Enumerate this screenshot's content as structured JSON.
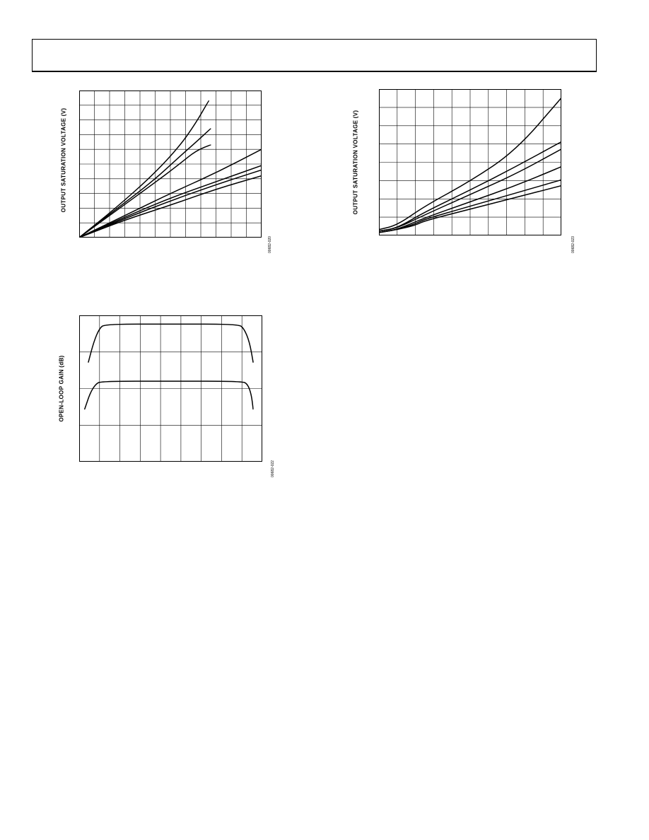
{
  "page": {
    "header": ""
  },
  "chart_data": [
    {
      "id": "chart1",
      "type": "line",
      "title": "",
      "xlabel": "",
      "ylabel": "OUTPUT SATURATION VOLTAGE (V)",
      "figure_id": "00682-020",
      "grid": true,
      "xlim": [
        0,
        1
      ],
      "ylim": [
        0,
        1
      ],
      "series": [
        {
          "values": [
            [
              0,
              0
            ],
            [
              0.2,
              0.2
            ],
            [
              0.4,
              0.42
            ],
            [
              0.55,
              0.62
            ],
            [
              0.64,
              0.78
            ],
            [
              0.71,
              0.93
            ]
          ]
        },
        {
          "values": [
            [
              0,
              0
            ],
            [
              0.2,
              0.19
            ],
            [
              0.4,
              0.38
            ],
            [
              0.55,
              0.55
            ],
            [
              0.65,
              0.66
            ],
            [
              0.72,
              0.74
            ]
          ]
        },
        {
          "values": [
            [
              0,
              0
            ],
            [
              0.2,
              0.18
            ],
            [
              0.4,
              0.36
            ],
            [
              0.55,
              0.5
            ],
            [
              0.64,
              0.59
            ],
            [
              0.72,
              0.63
            ]
          ]
        },
        {
          "values": [
            [
              0,
              0
            ],
            [
              0.25,
              0.15
            ],
            [
              0.5,
              0.3
            ],
            [
              0.75,
              0.44
            ],
            [
              1.0,
              0.6
            ]
          ]
        },
        {
          "values": [
            [
              0,
              0
            ],
            [
              0.25,
              0.14
            ],
            [
              0.5,
              0.27
            ],
            [
              0.75,
              0.38
            ],
            [
              1.0,
              0.49
            ]
          ]
        },
        {
          "values": [
            [
              0,
              0
            ],
            [
              0.25,
              0.13
            ],
            [
              0.5,
              0.25
            ],
            [
              0.75,
              0.36
            ],
            [
              1.0,
              0.46
            ]
          ]
        },
        {
          "values": [
            [
              0,
              0
            ],
            [
              0.25,
              0.12
            ],
            [
              0.5,
              0.22
            ],
            [
              0.75,
              0.33
            ],
            [
              1.0,
              0.42
            ]
          ]
        }
      ]
    },
    {
      "id": "chart2",
      "type": "line",
      "title": "",
      "xlabel": "",
      "ylabel": "OUTPUT SATURATION VOLTAGE (V)",
      "figure_id": "00682-023",
      "grid": true,
      "xlim": [
        0,
        1
      ],
      "ylim": [
        0,
        1
      ],
      "series": [
        {
          "values": [
            [
              0,
              0.04
            ],
            [
              0.1,
              0.07
            ],
            [
              0.25,
              0.2
            ],
            [
              0.5,
              0.37
            ],
            [
              0.75,
              0.58
            ],
            [
              1.0,
              0.94
            ]
          ]
        },
        {
          "values": [
            [
              0,
              0.03
            ],
            [
              0.1,
              0.05
            ],
            [
              0.25,
              0.16
            ],
            [
              0.5,
              0.31
            ],
            [
              0.75,
              0.47
            ],
            [
              1.0,
              0.64
            ]
          ]
        },
        {
          "values": [
            [
              0,
              0.03
            ],
            [
              0.1,
              0.05
            ],
            [
              0.25,
              0.14
            ],
            [
              0.5,
              0.28
            ],
            [
              0.75,
              0.42
            ],
            [
              1.0,
              0.59
            ]
          ]
        },
        {
          "values": [
            [
              0,
              0.02
            ],
            [
              0.1,
              0.04
            ],
            [
              0.25,
              0.12
            ],
            [
              0.5,
              0.23
            ],
            [
              0.75,
              0.34
            ],
            [
              1.0,
              0.47
            ]
          ]
        },
        {
          "values": [
            [
              0,
              0.02
            ],
            [
              0.1,
              0.04
            ],
            [
              0.2,
              0.08
            ],
            [
              0.25,
              0.11
            ],
            [
              0.5,
              0.2
            ],
            [
              0.75,
              0.29
            ],
            [
              1.0,
              0.38
            ]
          ]
        },
        {
          "values": [
            [
              0,
              0.02
            ],
            [
              0.1,
              0.04
            ],
            [
              0.2,
              0.07
            ],
            [
              0.25,
              0.1
            ],
            [
              0.5,
              0.18
            ],
            [
              0.75,
              0.26
            ],
            [
              1.0,
              0.34
            ]
          ]
        }
      ]
    },
    {
      "id": "chart3",
      "type": "line",
      "title": "",
      "xlabel": "",
      "ylabel": "OPEN-LOOP GAIN (dB)",
      "figure_id": "00682-022",
      "grid": true,
      "xlim": [
        0,
        1
      ],
      "ylim": [
        0,
        1
      ],
      "series": [
        {
          "values": [
            [
              0.05,
              0.68
            ],
            [
              0.08,
              0.82
            ],
            [
              0.11,
              0.91
            ],
            [
              0.14,
              0.94
            ],
            [
              0.5,
              0.94
            ],
            [
              0.87,
              0.94
            ],
            [
              0.9,
              0.91
            ],
            [
              0.93,
              0.82
            ],
            [
              0.95,
              0.68
            ]
          ]
        },
        {
          "values": [
            [
              0.03,
              0.36
            ],
            [
              0.06,
              0.47
            ],
            [
              0.09,
              0.53
            ],
            [
              0.12,
              0.55
            ],
            [
              0.5,
              0.55
            ],
            [
              0.89,
              0.55
            ],
            [
              0.92,
              0.53
            ],
            [
              0.94,
              0.46
            ],
            [
              0.95,
              0.36
            ]
          ]
        }
      ]
    }
  ]
}
